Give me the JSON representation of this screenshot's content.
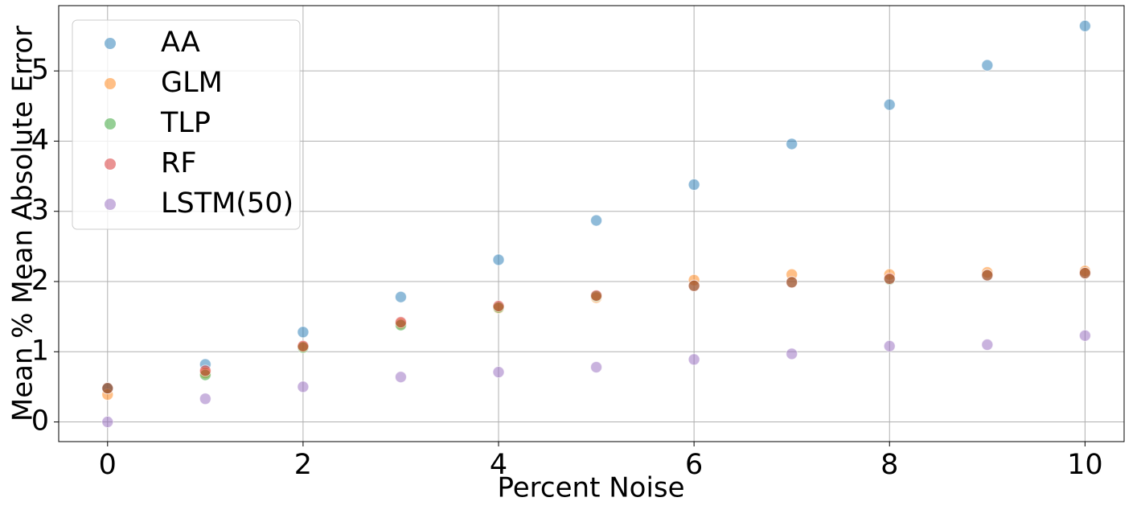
{
  "chart_data": {
    "type": "scatter",
    "xlabel": "Percent Noise",
    "ylabel": "Mean % Mean Absolute Error",
    "x": [
      0,
      1,
      2,
      3,
      4,
      5,
      6,
      7,
      8,
      9,
      10
    ],
    "series": [
      {
        "name": "AA",
        "color": "#1f77b4",
        "values": [
          0.48,
          0.82,
          1.28,
          1.78,
          2.31,
          2.87,
          3.38,
          3.96,
          4.52,
          5.08,
          5.64
        ]
      },
      {
        "name": "GLM",
        "color": "#ff7f0e",
        "values": [
          0.39,
          0.7,
          1.07,
          1.4,
          1.62,
          1.77,
          2.02,
          2.1,
          2.1,
          2.13,
          2.15
        ]
      },
      {
        "name": "TLP",
        "color": "#2ca02c",
        "values": [
          0.48,
          0.67,
          1.06,
          1.38,
          1.63,
          1.79,
          1.94,
          1.99,
          2.03,
          2.09,
          2.12
        ]
      },
      {
        "name": "RF",
        "color": "#d62728",
        "values": [
          0.48,
          0.73,
          1.08,
          1.42,
          1.65,
          1.8,
          1.94,
          1.99,
          2.04,
          2.09,
          2.12
        ]
      },
      {
        "name": "LSTM(50)",
        "color": "#9467bd",
        "values": [
          0,
          0.33,
          0.5,
          0.64,
          0.71,
          0.78,
          0.89,
          0.97,
          1.08,
          1.1,
          1.23
        ]
      }
    ],
    "alpha": 0.5,
    "xlim": [
      -0.5,
      10.4
    ],
    "ylim": [
      -0.28,
      5.93
    ],
    "xticks": [
      0,
      2,
      4,
      6,
      8,
      10
    ],
    "yticks": [
      0,
      1,
      2,
      3,
      4,
      5
    ],
    "grid": true,
    "legend": "upper left"
  }
}
